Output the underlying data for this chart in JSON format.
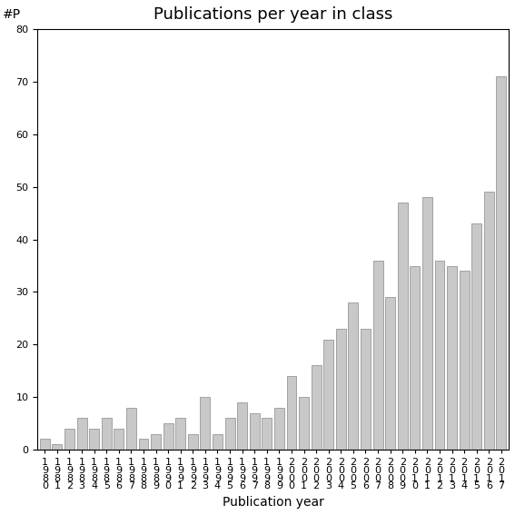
{
  "title": "Publications per year in class",
  "xlabel": "Publication year",
  "ylabel": "#P",
  "years": [
    "1980",
    "1981",
    "1982",
    "1983",
    "1984",
    "1985",
    "1986",
    "1987",
    "1988",
    "1989",
    "1990",
    "1991",
    "1992",
    "1993",
    "1994",
    "1995",
    "1996",
    "1997",
    "1998",
    "1999",
    "2000",
    "2001",
    "2002",
    "2003",
    "2004",
    "2005",
    "2006",
    "2007",
    "2008",
    "2009",
    "2010",
    "2011",
    "2012",
    "2013",
    "2014",
    "2015",
    "2016",
    "2017"
  ],
  "values": [
    2,
    1,
    4,
    6,
    4,
    6,
    4,
    8,
    2,
    3,
    5,
    6,
    3,
    10,
    3,
    6,
    9,
    7,
    6,
    8,
    14,
    10,
    16,
    21,
    23,
    28,
    23,
    36,
    29,
    47,
    35,
    48,
    36,
    35,
    34,
    43,
    49,
    71
  ],
  "bar_color": "#c8c8c8",
  "bar_edge_color": "#888888",
  "ylim": [
    0,
    80
  ],
  "yticks": [
    0,
    10,
    20,
    30,
    40,
    50,
    60,
    70,
    80
  ],
  "title_fontsize": 13,
  "label_fontsize": 10,
  "tick_fontsize": 8
}
